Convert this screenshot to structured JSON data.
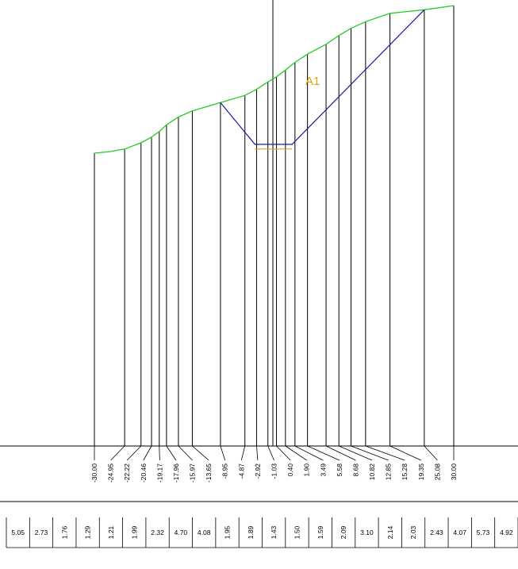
{
  "section": {
    "label": "A1",
    "colors": {
      "ground": "#22cc22",
      "design": "#1a1aa0",
      "design_bottom": "#e0a020",
      "label": "#e0a010",
      "lines": "#000000"
    },
    "ground_points": [
      {
        "offset": -30.0,
        "elev": 0.0
      },
      {
        "offset": -27.5,
        "elev": 0.15
      },
      {
        "offset": -24.95,
        "elev": 0.4
      },
      {
        "offset": -22.22,
        "elev": 1.0
      },
      {
        "offset": -20.46,
        "elev": 1.55
      },
      {
        "offset": -19.17,
        "elev": 2.1
      },
      {
        "offset": -17.96,
        "elev": 2.75
      },
      {
        "offset": -15.97,
        "elev": 3.5
      },
      {
        "offset": -13.65,
        "elev": 4.1
      },
      {
        "offset": -8.95,
        "elev": 4.9
      },
      {
        "offset": -4.87,
        "elev": 5.6
      },
      {
        "offset": -2.92,
        "elev": 6.2
      },
      {
        "offset": -1.03,
        "elev": 6.9
      },
      {
        "offset": 0.4,
        "elev": 7.4
      },
      {
        "offset": 1.9,
        "elev": 8.05
      },
      {
        "offset": 3.49,
        "elev": 8.8
      },
      {
        "offset": 5.58,
        "elev": 9.6
      },
      {
        "offset": 8.68,
        "elev": 10.55
      },
      {
        "offset": 10.82,
        "elev": 11.4
      },
      {
        "offset": 12.85,
        "elev": 12.1
      },
      {
        "offset": 15.28,
        "elev": 12.75
      },
      {
        "offset": 19.35,
        "elev": 13.55
      },
      {
        "offset": 25.08,
        "elev": 13.9
      },
      {
        "offset": 30.0,
        "elev": 14.3
      }
    ],
    "design_points": [
      {
        "offset": -8.95,
        "elev": 4.9
      },
      {
        "offset": -3.2,
        "elev": 0.85
      },
      {
        "offset": 3.0,
        "elev": 0.85
      },
      {
        "offset": 25.08,
        "elev": 13.9
      }
    ],
    "design_bottom": {
      "from": -3.2,
      "to": 3.0,
      "elev": 0.4
    },
    "offsets": [
      "-30.00",
      "-24.95",
      "-22.22",
      "-20.46",
      "-19.17",
      "-17.96",
      "-15.97",
      "-13.65",
      "-8.95",
      "-4.87",
      "-2.92",
      "-1.03",
      "0.40",
      "1.90",
      "3.49",
      "5.58",
      "8.68",
      "10.82",
      "12.85",
      "15.28",
      "19.35",
      "25.08",
      "30.00"
    ],
    "bottom_values": [
      "5.05",
      "2.73",
      "1.76",
      "1.29",
      "1.21",
      "1.99",
      "2.32",
      "4.70",
      "4.08",
      "1.95",
      "1.89",
      "1.43",
      "1.50",
      "1.59",
      "2.09",
      "3.10",
      "2.14",
      "2.03",
      "2.43",
      "4.07",
      "5.73",
      "4.92"
    ]
  }
}
